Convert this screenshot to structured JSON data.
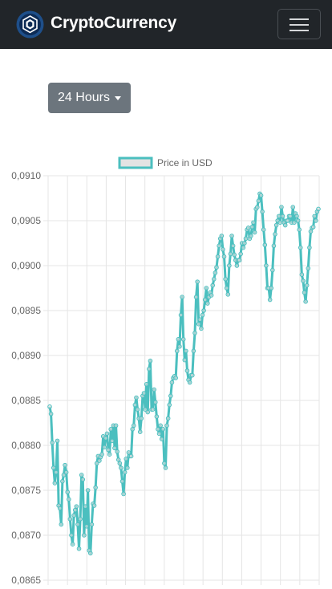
{
  "navbar": {
    "brand": "CryptoCurrency",
    "logo_icon": "crypto-com-lion-logo",
    "menu_icon": "hamburger-menu-icon"
  },
  "range_dropdown": {
    "label": "24 Hours"
  },
  "colors": {
    "navbar_bg": "#212529",
    "button_bg": "#6c757d",
    "line": "#4bbfbf",
    "fill": "#e3e3e3"
  },
  "chart_data": {
    "type": "line",
    "legend": "Price in USD",
    "legend_position": "top",
    "grid": true,
    "ylim": [
      0.0865,
      0.091
    ],
    "yticks": [
      "0,0865",
      "0,0870",
      "0,0875",
      "0,0880",
      "0,0885",
      "0,0890",
      "0,0895",
      "0,0900",
      "0,0905",
      "0,0910"
    ],
    "values": [
      0.08843,
      0.08835,
      0.08803,
      0.08775,
      0.08758,
      0.0877,
      0.08805,
      0.08733,
      0.0873,
      0.08712,
      0.0876,
      0.08767,
      0.08778,
      0.0877,
      0.08748,
      0.0874,
      0.08718,
      0.087,
      0.0869,
      0.08722,
      0.08728,
      0.08732,
      0.08712,
      0.08685,
      0.08718,
      0.08767,
      0.08762,
      0.087,
      0.08732,
      0.0871,
      0.0875,
      0.08683,
      0.0868,
      0.08712,
      0.08735,
      0.08733,
      0.08753,
      0.0878,
      0.08788,
      0.08783,
      0.08787,
      0.0879,
      0.0881,
      0.08798,
      0.08808,
      0.08813,
      0.08795,
      0.0879,
      0.08818,
      0.08805,
      0.08822,
      0.08797,
      0.08822,
      0.08793,
      0.08784,
      0.0878,
      0.08775,
      0.0876,
      0.08746,
      0.0877,
      0.08785,
      0.08775,
      0.08792,
      0.08788,
      0.08788,
      0.08818,
      0.08822,
      0.08845,
      0.08853,
      0.0884,
      0.0883,
      0.08815,
      0.0883,
      0.08855,
      0.08858,
      0.0884,
      0.08868,
      0.08837,
      0.08885,
      0.08894,
      0.0884,
      0.0884,
      0.08862,
      0.08848,
      0.08832,
      0.08818,
      0.08813,
      0.08822,
      0.08807,
      0.08818,
      0.0878,
      0.08775,
      0.08822,
      0.0883,
      0.08845,
      0.08855,
      0.0887,
      0.08875,
      0.08877,
      0.08875,
      0.08905,
      0.08918,
      0.0891,
      0.08945,
      0.08965,
      0.08918,
      0.08895,
      0.08905,
      0.08883,
      0.08873,
      0.0887,
      0.08878,
      0.08878,
      0.08905,
      0.08925,
      0.08965,
      0.08982,
      0.08935,
      0.0894,
      0.0893,
      0.08945,
      0.0895,
      0.08962,
      0.08975,
      0.08958,
      0.08965,
      0.0897,
      0.08967,
      0.08978,
      0.08985,
      0.08992,
      0.08998,
      0.0901,
      0.09022,
      0.0903,
      0.09033,
      0.09018,
      0.0901,
      0.08985,
      0.08975,
      0.08968,
      0.09,
      0.09013,
      0.09033,
      0.09022,
      0.09012,
      0.09006,
      0.09,
      0.09006,
      0.09006,
      0.09013,
      0.09025,
      0.0902,
      0.09025,
      0.0903,
      0.0904,
      0.09042,
      0.0903,
      0.09033,
      0.09043,
      0.09048,
      0.09037,
      0.09063,
      0.09065,
      0.09072,
      0.0908,
      0.09078,
      0.0906,
      0.0904,
      0.09023,
      0.09,
      0.08975,
      0.08975,
      0.08962,
      0.08975,
      0.08995,
      0.09022,
      0.09035,
      0.09045,
      0.0905,
      0.09055,
      0.09048,
      0.09065,
      0.09055,
      0.09048,
      0.09045,
      0.0905,
      0.0905,
      0.09055,
      0.09055,
      0.09048,
      0.09065,
      0.09048,
      0.09058,
      0.09055,
      0.0905,
      0.0904,
      0.0902,
      0.0899,
      0.08983,
      0.0897,
      0.0896,
      0.08978,
      0.08997,
      0.0902,
      0.09038,
      0.09042,
      0.09043,
      0.09055,
      0.0905,
      0.0906,
      0.09063
    ]
  }
}
